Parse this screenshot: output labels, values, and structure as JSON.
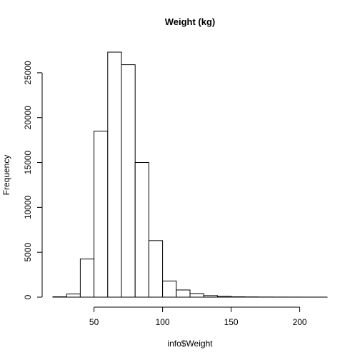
{
  "chart_data": {
    "type": "bar",
    "title": "Weight (kg)",
    "xlabel": "info$Weight",
    "ylabel": "Frequency",
    "bin_width": 10,
    "bins": [
      {
        "start": 20,
        "end": 30,
        "count": 40
      },
      {
        "start": 30,
        "end": 40,
        "count": 350
      },
      {
        "start": 40,
        "end": 50,
        "count": 4250
      },
      {
        "start": 50,
        "end": 60,
        "count": 18500
      },
      {
        "start": 60,
        "end": 70,
        "count": 27300
      },
      {
        "start": 70,
        "end": 80,
        "count": 25900
      },
      {
        "start": 80,
        "end": 90,
        "count": 15000
      },
      {
        "start": 90,
        "end": 100,
        "count": 6300
      },
      {
        "start": 100,
        "end": 110,
        "count": 1800
      },
      {
        "start": 110,
        "end": 120,
        "count": 800
      },
      {
        "start": 120,
        "end": 130,
        "count": 400
      },
      {
        "start": 130,
        "end": 140,
        "count": 170
      },
      {
        "start": 140,
        "end": 150,
        "count": 90
      },
      {
        "start": 150,
        "end": 160,
        "count": 40
      },
      {
        "start": 160,
        "end": 170,
        "count": 25
      },
      {
        "start": 170,
        "end": 180,
        "count": 15
      },
      {
        "start": 180,
        "end": 190,
        "count": 10
      },
      {
        "start": 190,
        "end": 200,
        "count": 8
      },
      {
        "start": 200,
        "end": 210,
        "count": 5
      },
      {
        "start": 210,
        "end": 220,
        "count": 4
      }
    ],
    "x_ticks": [
      50,
      100,
      150,
      200
    ],
    "x_tick_labels": [
      "50",
      "100",
      "150",
      "200"
    ],
    "y_ticks": [
      0,
      5000,
      10000,
      15000,
      20000,
      25000
    ],
    "y_tick_labels": [
      "0",
      "5000",
      "10000",
      "15000",
      "20000",
      "25000"
    ],
    "xlim": [
      20,
      220
    ],
    "ylim": [
      0,
      27300
    ],
    "grid": false,
    "legend": "none",
    "colors": {
      "bar_fill": "#ffffff",
      "bar_stroke": "#000000"
    }
  }
}
